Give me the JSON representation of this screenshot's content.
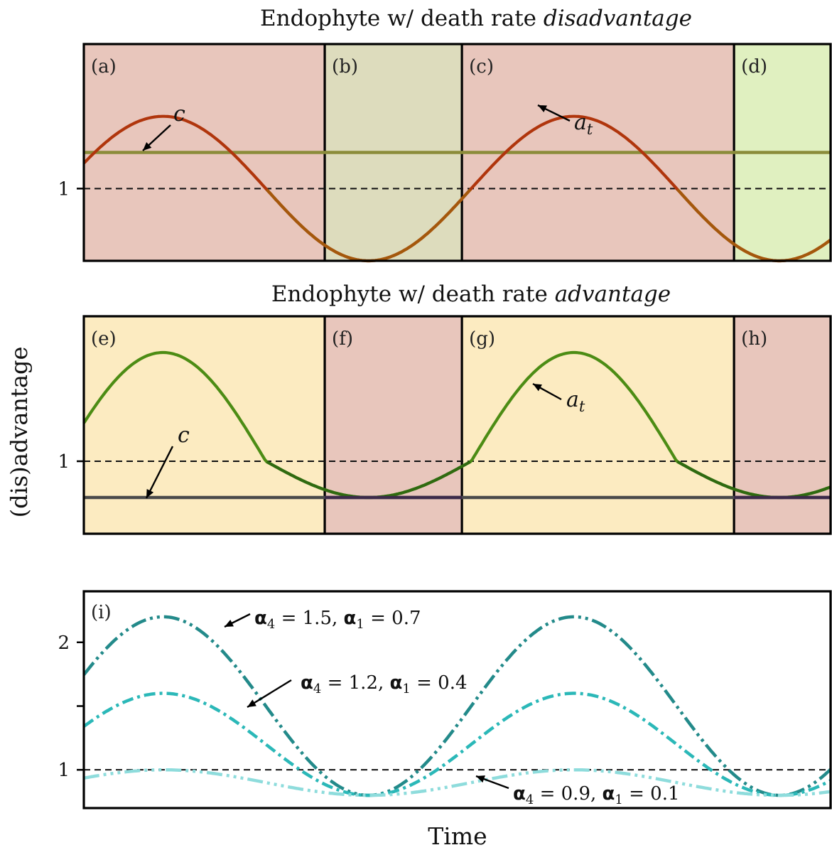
{
  "figure": {
    "ylabel": "(dis)advantage",
    "xlabel": "Time"
  },
  "colors": {
    "red_bg": "#e8c6bc",
    "olive_bg": "#dddcbd",
    "green_bg": "#e0f0c0",
    "yellow_bg": "#fcebc1",
    "at_top": "#b0350c",
    "c_top": "#8b8c3a",
    "at_mid": "#4c8c14",
    "c_mid": "#4a4a4a",
    "series_1": "#238a8a",
    "series_2": "#2bb8b8",
    "series_3": "#8edcdc"
  },
  "chart_data": [
    {
      "type": "line",
      "title": "Endophyte w/ death rate disadvantage",
      "title_plain": "Endophyte w/ death rate ",
      "title_italic": "disadvantage",
      "ylim": [
        0.5,
        2.0
      ],
      "yticks": [
        1
      ],
      "ytick_labels": [
        "1"
      ],
      "xlim": [
        0,
        1.0
      ],
      "reference_line": 1,
      "regions": [
        {
          "label": "(a)",
          "start": 0.0,
          "end": 0.3226,
          "color": "red"
        },
        {
          "label": "(b)",
          "start": 0.3226,
          "end": 0.5063,
          "color": "olive"
        },
        {
          "label": "(c)",
          "start": 0.5063,
          "end": 0.8707,
          "color": "red"
        },
        {
          "label": "(d)",
          "start": 0.8707,
          "end": 1.0,
          "color": "green"
        }
      ],
      "series": [
        {
          "name": "a_t",
          "label_main": "a",
          "label_sub": "t",
          "kind": "sine",
          "mean": 1.0,
          "amp": 0.5,
          "period": 0.5502,
          "phase_zero": -0.0314
        },
        {
          "name": "c",
          "kind": "constant",
          "value": 1.25
        }
      ]
    },
    {
      "type": "line",
      "title": "Endophyte w/ death rate advantage",
      "title_plain": "Endophyte w/ death rate ",
      "title_italic": "advantage",
      "ylim": [
        0.5,
        2.0
      ],
      "yticks": [
        1
      ],
      "ytick_labels": [
        "1"
      ],
      "xlim": [
        0,
        1.0
      ],
      "reference_line": 1,
      "regions": [
        {
          "label": "(e)",
          "start": 0.0,
          "end": 0.3226,
          "color": "yellow"
        },
        {
          "label": "(f)",
          "start": 0.3226,
          "end": 0.5063,
          "color": "red"
        },
        {
          "label": "(g)",
          "start": 0.5063,
          "end": 0.8707,
          "color": "yellow"
        },
        {
          "label": "(h)",
          "start": 0.8707,
          "end": 1.0,
          "color": "red"
        }
      ],
      "series": [
        {
          "name": "a_t",
          "label_main": "a",
          "label_sub": "t",
          "kind": "sine",
          "mean": 1.0,
          "amp": 0.75,
          "amp_low": 0.25,
          "period": 0.5502,
          "phase_zero": -0.0314
        },
        {
          "name": "c",
          "kind": "constant",
          "value": 0.75
        }
      ]
    },
    {
      "type": "line",
      "title": "",
      "panel_label": "(i)",
      "ylim": [
        0.7,
        2.4
      ],
      "yticks": [
        1,
        1.5,
        2
      ],
      "ytick_labels": [
        "1",
        "",
        "2"
      ],
      "xlim": [
        0,
        1.0
      ],
      "reference_line": 1,
      "series": [
        {
          "name": "α4 = 1.5, α1 = 0.7",
          "a4": "1.5",
          "a1": "0.7",
          "kind": "sine",
          "mean": 1.5,
          "amp": 0.7,
          "period": 0.5502,
          "phase_zero": -0.0314,
          "color": "series_1",
          "dash": "22,6,4,6,4,6"
        },
        {
          "name": "α4 = 1.2, α1 = 0.4",
          "a4": "1.2",
          "a1": "0.4",
          "kind": "sine",
          "mean": 1.2,
          "amp": 0.4,
          "period": 0.5502,
          "phase_zero": -0.0314,
          "color": "series_2",
          "dash": "16,6,4,6"
        },
        {
          "name": "α4 = 0.9, α1 = 0.1",
          "a4": "0.9",
          "a1": "0.1",
          "kind": "sine",
          "mean": 0.9,
          "amp": 0.1,
          "period": 0.5502,
          "phase_zero": -0.0314,
          "color": "series_3",
          "dash": "22,6,4,6,4,6,4,6"
        }
      ]
    }
  ]
}
